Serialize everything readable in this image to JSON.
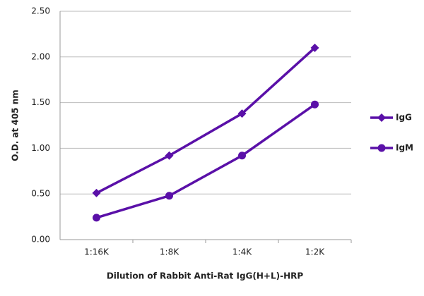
{
  "chart_data": {
    "type": "line",
    "x_label": "Dilution of Rabbit Anti-Rat IgG(H+L)-HRP",
    "y_label": "O.D. at 405 nm",
    "categories": [
      "1:16K",
      "1:8K",
      "1:4K",
      "1:2K"
    ],
    "series": [
      {
        "name": "IgG",
        "color": "#5a10a8",
        "marker": "diamond",
        "values": [
          0.51,
          0.92,
          1.38,
          2.1
        ]
      },
      {
        "name": "IgM",
        "color": "#5a10a8",
        "marker": "circle",
        "values": [
          0.24,
          0.48,
          0.92,
          1.48
        ]
      }
    ],
    "ylim": [
      0,
      2.5
    ],
    "yticks": [
      {
        "value": 0,
        "label": "0.00"
      },
      {
        "value": 0.5,
        "label": "0.50"
      },
      {
        "value": 1,
        "label": "1.00"
      },
      {
        "value": 1.5,
        "label": "1.50"
      },
      {
        "value": 2,
        "label": "2.00"
      },
      {
        "value": 2.5,
        "label": "2.50"
      }
    ],
    "grid": true,
    "legend": "right"
  }
}
